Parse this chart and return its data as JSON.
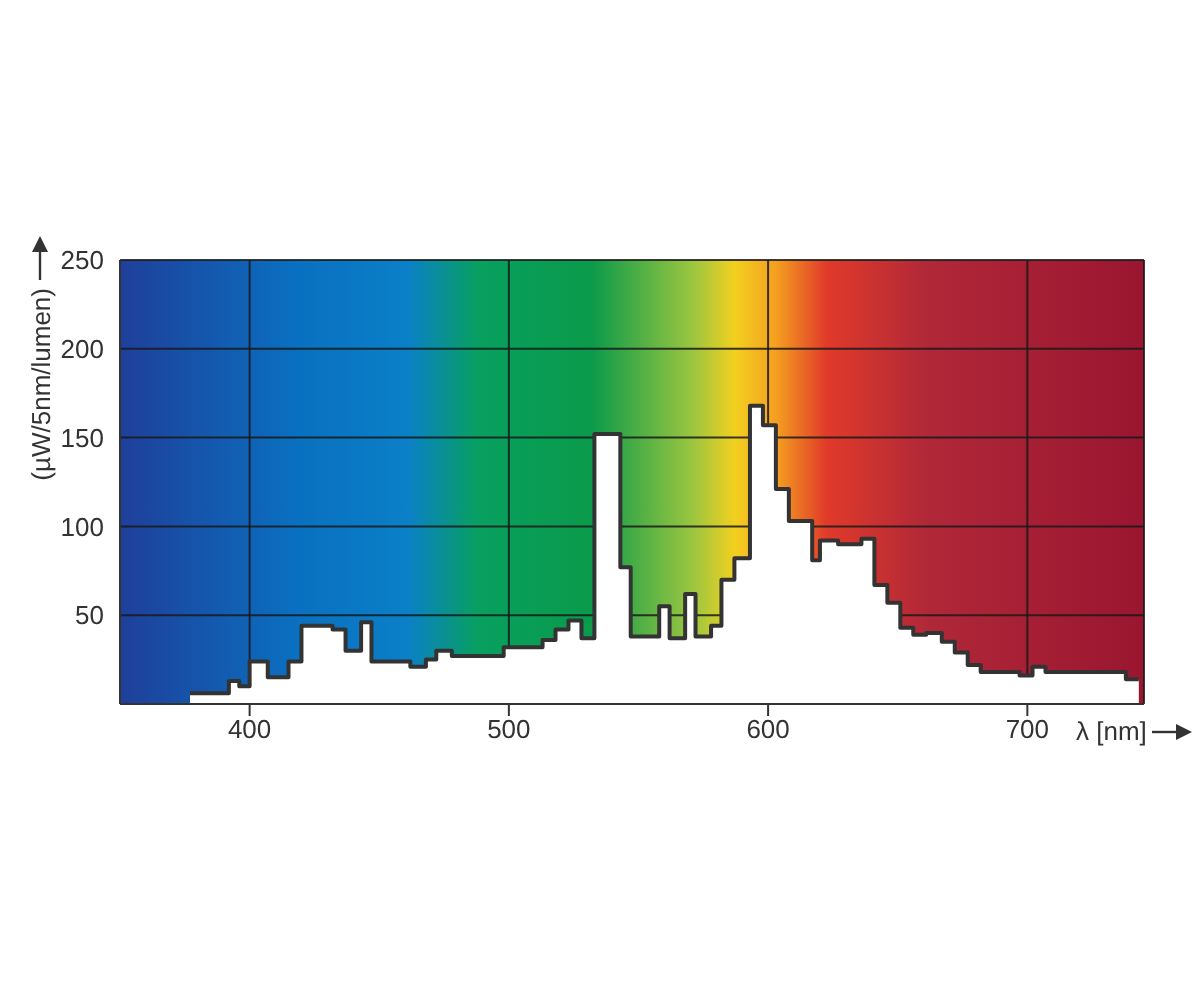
{
  "chart_data": {
    "type": "step",
    "xlabel": "λ [nm]",
    "ylabel": "(µW/5nm/lumen)",
    "x": [
      377,
      392,
      396,
      400,
      407,
      415,
      420,
      432,
      437,
      443,
      447,
      462,
      468,
      472,
      478,
      483,
      498,
      513,
      518,
      523,
      528,
      533,
      543,
      547,
      558,
      562,
      568,
      572,
      578,
      582,
      587,
      593,
      598,
      603,
      608,
      617,
      620,
      627,
      636,
      641,
      646,
      651,
      656,
      661,
      667,
      672,
      677,
      682,
      697,
      702,
      707,
      738,
      743
    ],
    "series": [
      {
        "type": "area",
        "color": "#ffffff",
        "values": [
          6,
          13,
          10,
          24,
          15,
          24,
          44,
          42,
          30,
          46,
          24,
          21,
          25,
          30,
          27,
          27,
          32,
          36,
          42,
          47,
          37,
          152,
          77,
          38,
          55,
          37,
          62,
          38,
          44,
          70,
          82,
          168,
          157,
          121,
          103,
          81,
          92,
          90,
          93,
          67,
          57,
          43,
          39,
          40,
          35,
          29,
          22,
          18,
          16,
          21,
          18,
          14,
          14
        ]
      },
      {
        "color": "#333333",
        "values": [
          6,
          13,
          10,
          24,
          15,
          24,
          44,
          42,
          30,
          46,
          24,
          21,
          25,
          30,
          27,
          27,
          32,
          36,
          42,
          47,
          37,
          152,
          77,
          38,
          55,
          37,
          62,
          38,
          44,
          70,
          82,
          168,
          157,
          121,
          103,
          81,
          92,
          90,
          93,
          67,
          57,
          43,
          39,
          40,
          35,
          29,
          22,
          18,
          16,
          21,
          18,
          14,
          14
        ]
      }
    ],
    "xlim": [
      350,
      745
    ],
    "ylim": [
      0,
      250
    ],
    "xticks": [
      400,
      500,
      600,
      700
    ],
    "yticks": [
      50,
      100,
      150,
      200,
      250
    ],
    "grid": true
  }
}
